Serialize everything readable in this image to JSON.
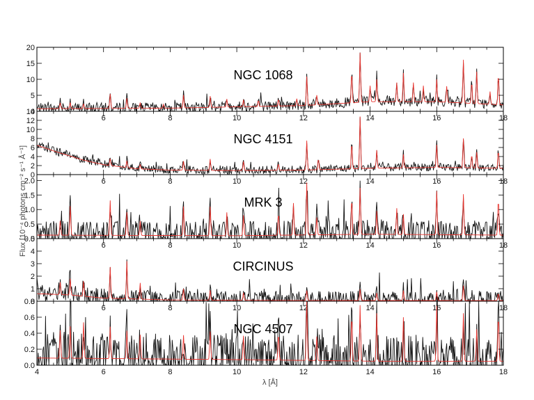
{
  "chart_data": {
    "type": "line",
    "xlabel": "λ [Å]",
    "ylabel": "Flux [10⁻⁴ photons cm⁻² s⁻¹ Å⁻¹]",
    "xlim": [
      4,
      18
    ],
    "xticks": [
      "4",
      "6",
      "8",
      "10",
      "12",
      "14",
      "16",
      "18"
    ],
    "colors": {
      "data": "#111111",
      "model": "#e8332d"
    },
    "panels": [
      {
        "title": "NGC 1068",
        "ylim": [
          0,
          20
        ],
        "yticks": [
          "0",
          "5",
          "10",
          "15",
          "20"
        ],
        "continuum": [
          [
            4,
            0.8
          ],
          [
            8,
            1.0
          ],
          [
            12,
            1.8
          ],
          [
            14,
            3.0
          ],
          [
            16,
            3.0
          ],
          [
            18,
            2.0
          ]
        ],
        "noise": 1.6,
        "lines": [
          [
            4.7,
            1.8
          ],
          [
            5.0,
            1.9
          ],
          [
            5.4,
            1.5
          ],
          [
            6.2,
            4.5
          ],
          [
            6.7,
            3.2
          ],
          [
            7.1,
            1.8
          ],
          [
            7.8,
            1.2
          ],
          [
            8.4,
            4.0
          ],
          [
            9.2,
            3.5
          ],
          [
            9.7,
            2.5
          ],
          [
            10.2,
            2.2
          ],
          [
            10.65,
            2.0
          ],
          [
            11.25,
            2.2
          ],
          [
            11.8,
            2.2
          ],
          [
            12.1,
            9.0
          ],
          [
            12.4,
            3.0
          ],
          [
            13.45,
            10.0
          ],
          [
            13.7,
            15.5
          ],
          [
            14.0,
            5.0
          ],
          [
            14.2,
            7.0
          ],
          [
            14.8,
            6.0
          ],
          [
            15.0,
            9.0
          ],
          [
            15.3,
            6.0
          ],
          [
            15.6,
            5.0
          ],
          [
            16.0,
            7.0
          ],
          [
            16.3,
            5.0
          ],
          [
            16.8,
            13.5
          ],
          [
            17.05,
            7.0
          ],
          [
            17.2,
            10.0
          ],
          [
            17.6,
            4.0
          ],
          [
            17.85,
            10.0
          ]
        ]
      },
      {
        "title": "NGC 4151",
        "ylim": [
          0,
          14
        ],
        "yticks": [
          "0",
          "2",
          "4",
          "6",
          "8",
          "10",
          "12",
          "14"
        ],
        "continuum": [
          [
            4,
            6.5
          ],
          [
            4.6,
            5.0
          ],
          [
            5.4,
            3.2
          ],
          [
            6,
            2.2
          ],
          [
            7,
            1.3
          ],
          [
            8,
            1.0
          ],
          [
            10,
            0.9
          ],
          [
            12,
            1.0
          ],
          [
            14,
            1.4
          ],
          [
            16,
            1.6
          ],
          [
            18,
            1.4
          ]
        ],
        "noise": 0.9,
        "lines": [
          [
            6.2,
            1.5
          ],
          [
            6.7,
            1.5
          ],
          [
            7.1,
            1.0
          ],
          [
            8.4,
            2.0
          ],
          [
            9.2,
            2.5
          ],
          [
            10.2,
            2.0
          ],
          [
            11.25,
            1.5
          ],
          [
            12.1,
            6.5
          ],
          [
            12.45,
            2.5
          ],
          [
            13.45,
            6.0
          ],
          [
            13.7,
            11.5
          ],
          [
            14.2,
            4.0
          ],
          [
            15.0,
            3.0
          ],
          [
            16.0,
            5.0
          ],
          [
            16.8,
            6.5
          ],
          [
            17.05,
            3.0
          ],
          [
            17.2,
            3.5
          ],
          [
            17.85,
            4.0
          ]
        ]
      },
      {
        "title": "MRK 3",
        "ylim": [
          0,
          2.2
        ],
        "yticks": [
          "0.0",
          "0.5",
          "1.0",
          "1.5",
          "2.0"
        ],
        "continuum": [
          [
            4,
            0.12
          ],
          [
            10,
            0.1
          ],
          [
            14,
            0.15
          ],
          [
            18,
            0.12
          ]
        ],
        "noise": 0.45,
        "lines": [
          [
            4.7,
            0.5
          ],
          [
            5.0,
            1.0
          ],
          [
            6.2,
            1.2
          ],
          [
            6.7,
            0.8
          ],
          [
            7.1,
            0.5
          ],
          [
            8.4,
            1.0
          ],
          [
            9.2,
            1.0
          ],
          [
            9.7,
            0.8
          ],
          [
            10.2,
            0.7
          ],
          [
            11.25,
            0.8
          ],
          [
            11.7,
            1.1
          ],
          [
            12.1,
            1.8
          ],
          [
            12.4,
            0.6
          ],
          [
            13.45,
            1.3
          ],
          [
            13.7,
            1.6
          ],
          [
            14.2,
            0.8
          ],
          [
            14.8,
            0.9
          ],
          [
            15.0,
            0.7
          ],
          [
            16.0,
            1.5
          ],
          [
            16.8,
            1.4
          ],
          [
            17.85,
            1.3
          ]
        ]
      },
      {
        "title": "CIRCINUS",
        "ylim": [
          0,
          5
        ],
        "yticks": [
          "0",
          "1",
          "2",
          "3",
          "4",
          "5"
        ],
        "continuum": [
          [
            4,
            0.6
          ],
          [
            5,
            0.5
          ],
          [
            6,
            0.25
          ],
          [
            8,
            0.1
          ],
          [
            12,
            0.06
          ],
          [
            18,
            0.05
          ]
        ],
        "noise": 0.7,
        "lines": [
          [
            4.7,
            1.0
          ],
          [
            5.0,
            1.3
          ],
          [
            5.4,
            1.2
          ],
          [
            6.2,
            2.5
          ],
          [
            6.7,
            3.0
          ],
          [
            7.1,
            1.3
          ],
          [
            8.4,
            0.9
          ],
          [
            9.2,
            0.8
          ],
          [
            10.2,
            0.6
          ],
          [
            12.1,
            0.8
          ],
          [
            13.7,
            0.9
          ],
          [
            14.2,
            0.6
          ],
          [
            15.0,
            0.8
          ],
          [
            16.0,
            0.7
          ],
          [
            16.8,
            1.2
          ],
          [
            17.85,
            0.6
          ]
        ]
      },
      {
        "title": "NGC 4507",
        "ylim": [
          0,
          0.8
        ],
        "yticks": [
          "0.0",
          "0.2",
          "0.4",
          "0.6",
          "0.8"
        ],
        "continuum": [
          [
            4,
            0.09
          ],
          [
            10,
            0.07
          ],
          [
            14,
            0.05
          ],
          [
            18,
            0.05
          ]
        ],
        "noise": 0.3,
        "lines": [
          [
            4.7,
            0.35
          ],
          [
            5.0,
            0.4
          ],
          [
            5.4,
            0.45
          ],
          [
            6.2,
            0.4
          ],
          [
            6.7,
            0.35
          ],
          [
            7.1,
            0.3
          ],
          [
            8.4,
            0.3
          ],
          [
            9.2,
            0.35
          ],
          [
            10.2,
            0.3
          ],
          [
            11.25,
            0.35
          ],
          [
            12.1,
            0.75
          ],
          [
            12.4,
            0.3
          ],
          [
            13.45,
            0.6
          ],
          [
            13.7,
            0.7
          ],
          [
            14.2,
            0.6
          ],
          [
            15.0,
            0.55
          ],
          [
            16.0,
            0.7
          ],
          [
            16.8,
            0.6
          ],
          [
            17.2,
            0.4
          ],
          [
            17.85,
            0.6
          ]
        ]
      }
    ]
  }
}
